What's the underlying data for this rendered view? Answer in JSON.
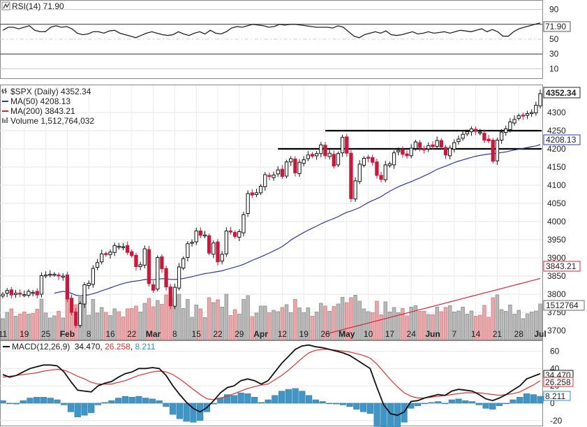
{
  "chart_data": {
    "type": "candlestick",
    "title": "$SPX (Daily) 4352.34",
    "rsi": {
      "label": "RSI(14) 71.90",
      "value": "71.90",
      "ticks": [
        "90",
        "70",
        "50",
        "30",
        "10"
      ],
      "ylim": [
        0,
        100
      ],
      "values": [
        62,
        66,
        66,
        64,
        66,
        68,
        62,
        60,
        60,
        66,
        68,
        66,
        67,
        64,
        58,
        56,
        57,
        60,
        60,
        58,
        61,
        62,
        58,
        56,
        54,
        52,
        55,
        58,
        60,
        58,
        56,
        55,
        56,
        60,
        57,
        55,
        58,
        60,
        57,
        62,
        58,
        57,
        60,
        65,
        67,
        66,
        68,
        70,
        69,
        68,
        66,
        67,
        70,
        69,
        70,
        70,
        69,
        68,
        67,
        66,
        66,
        66,
        65,
        68,
        66,
        60,
        54,
        52,
        56,
        58,
        60,
        58,
        61,
        56,
        55,
        56,
        58,
        60,
        57,
        58,
        60,
        58,
        59,
        60,
        58,
        60,
        62,
        61,
        60,
        62,
        64,
        60,
        63,
        60,
        54,
        54,
        60,
        64,
        66,
        68,
        70,
        72
      ]
    },
    "price": {
      "legend": [
        {
          "label": "$SPX (Daily) 4352.34",
          "color": "#222222"
        },
        {
          "label": "MA(50) 4208.13",
          "color": "#2b3aa8"
        },
        {
          "label": "MA(200) 3843.21",
          "color": "#d9243a"
        },
        {
          "label": "Volume 1,512,764,032",
          "color": "#555555"
        }
      ],
      "y_ticks": [
        "4300",
        "4250",
        "4200",
        "4150",
        "4100",
        "4050",
        "4000",
        "3950",
        "3900",
        "3850",
        "3800",
        "3750",
        "3700"
      ],
      "ylim": [
        3675,
        4375
      ],
      "x_ticks": [
        "11",
        "19",
        "25",
        "Feb",
        "8",
        "16",
        "22",
        "Mar",
        "8",
        "15",
        "22",
        "29",
        "Apr",
        "12",
        "19",
        "26",
        "May",
        "10",
        "17",
        "24",
        "Jun",
        "7",
        "14",
        "21",
        "28",
        "Jul"
      ],
      "bold_ticks": [
        "Feb",
        "Mar",
        "Apr",
        "May",
        "Jun",
        "Jul"
      ],
      "last_price": "4352.34",
      "ma50_value": "4208.13",
      "ma200_value": "3843.21",
      "volume_value": "1512764",
      "resistance_lines": [
        4250,
        4200
      ],
      "close": [
        3800,
        3810,
        3798,
        3803,
        3800,
        3799,
        3808,
        3805,
        3798,
        3851,
        3853,
        3855,
        3855,
        3850,
        3850,
        3787,
        3750,
        3714,
        3774,
        3826,
        3830,
        3871,
        3887,
        3911,
        3909,
        3916,
        3934,
        3932,
        3931,
        3915,
        3906,
        3876,
        3881,
        3925,
        3829,
        3811,
        3901,
        3870,
        3820,
        3768,
        3819,
        3875,
        3898,
        3939,
        3943,
        3974,
        3962,
        3963,
        3913,
        3941,
        3889,
        3910,
        3974,
        3971,
        3959,
        3972,
        4019,
        4077,
        4073,
        4079,
        4097,
        4129,
        4124,
        4128,
        4142,
        4124,
        4164,
        4173,
        4134,
        4163,
        4170,
        4183,
        4180,
        4187,
        4211,
        4181,
        4188,
        4153,
        4187,
        4232,
        4188,
        4063,
        4112,
        4158,
        4174,
        4174,
        4163,
        4127,
        4116,
        4156,
        4159,
        4189,
        4196,
        4185,
        4181,
        4202,
        4219,
        4204,
        4197,
        4209,
        4206,
        4223,
        4205,
        4183,
        4202,
        4217,
        4227,
        4240,
        4247,
        4255,
        4248,
        4246,
        4224,
        4222,
        4166,
        4224,
        4246,
        4255,
        4274,
        4281,
        4291,
        4291,
        4297,
        4300,
        4320,
        4352
      ]
    },
    "macd": {
      "label": "MACD(12,26,9) 34.470, 26.258, 8.211",
      "macd_text": "MACD(12,26,9)",
      "v1": "34.470",
      "v2": "26.258",
      "v3": "8.211",
      "ticks": [
        "60",
        "40",
        "20",
        "0",
        "-20"
      ],
      "ylim": [
        -25,
        70
      ],
      "macd": [
        33,
        30,
        32,
        36,
        40,
        42,
        44,
        44,
        43,
        36,
        25,
        15,
        14,
        13,
        20,
        23,
        25,
        30,
        34,
        36,
        40,
        40,
        41,
        40,
        32,
        20,
        10,
        1,
        -6,
        -10,
        -5,
        3,
        12,
        18,
        20,
        26,
        28,
        26,
        22,
        26,
        36,
        46,
        54,
        62,
        66,
        67,
        65,
        64,
        62,
        60,
        58,
        55,
        50,
        45,
        40,
        18,
        -2,
        -12,
        -14,
        -10,
        2,
        3,
        6,
        8,
        10,
        9,
        14,
        16,
        15,
        14,
        10,
        5,
        3,
        6,
        10,
        15,
        20,
        28,
        31,
        34
      ],
      "signal": [
        30,
        31,
        32,
        33,
        34,
        35,
        37,
        38,
        39,
        38,
        35,
        31,
        28,
        24,
        22,
        22,
        22,
        24,
        26,
        29,
        32,
        34,
        36,
        37,
        36,
        33,
        28,
        22,
        16,
        10,
        5,
        4,
        6,
        8,
        11,
        14,
        17,
        19,
        21,
        22,
        27,
        32,
        38,
        45,
        52,
        58,
        61,
        62,
        62,
        61,
        60,
        59,
        57,
        55,
        52,
        45,
        36,
        27,
        19,
        12,
        8,
        6,
        6,
        7,
        8,
        9,
        10,
        11,
        12,
        12,
        12,
        11,
        10,
        9,
        10,
        11,
        13,
        17,
        21,
        26
      ],
      "hist": [
        3,
        0,
        -1,
        3,
        6,
        7,
        7,
        6,
        4,
        -2,
        -10,
        -16,
        -14,
        -11,
        -2,
        1,
        3,
        6,
        8,
        7,
        8,
        6,
        5,
        3,
        -4,
        -13,
        -18,
        -21,
        -22,
        -20,
        -10,
        -1,
        6,
        10,
        9,
        12,
        11,
        7,
        1,
        4,
        9,
        14,
        16,
        17,
        14,
        9,
        4,
        2,
        0,
        -1,
        -2,
        -4,
        -7,
        -10,
        -12,
        -27,
        -38,
        -39,
        -33,
        -22,
        -6,
        -3,
        0,
        1,
        2,
        0,
        4,
        5,
        3,
        2,
        -2,
        -6,
        -7,
        -3,
        0,
        4,
        7,
        11,
        10,
        8
      ]
    }
  }
}
